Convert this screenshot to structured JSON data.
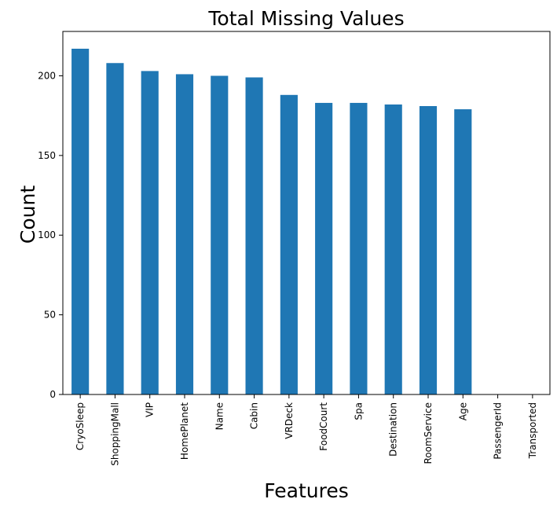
{
  "chart_data": {
    "type": "bar",
    "title": "Total Missing Values",
    "xlabel": "Features",
    "ylabel": "Count",
    "categories": [
      "CryoSleep",
      "ShoppingMall",
      "VIP",
      "HomePlanet",
      "Name",
      "Cabin",
      "VRDeck",
      "FoodCourt",
      "Spa",
      "Destination",
      "RoomService",
      "Age",
      "PassengerId",
      "Transported"
    ],
    "values": [
      217,
      208,
      203,
      201,
      200,
      199,
      188,
      183,
      183,
      182,
      181,
      179,
      0,
      0
    ],
    "ylim": [
      0,
      227.85
    ],
    "yticks": [
      0,
      50,
      100,
      150,
      200
    ],
    "bar_color": "#1f77b4",
    "grid": false,
    "legend": "none"
  }
}
